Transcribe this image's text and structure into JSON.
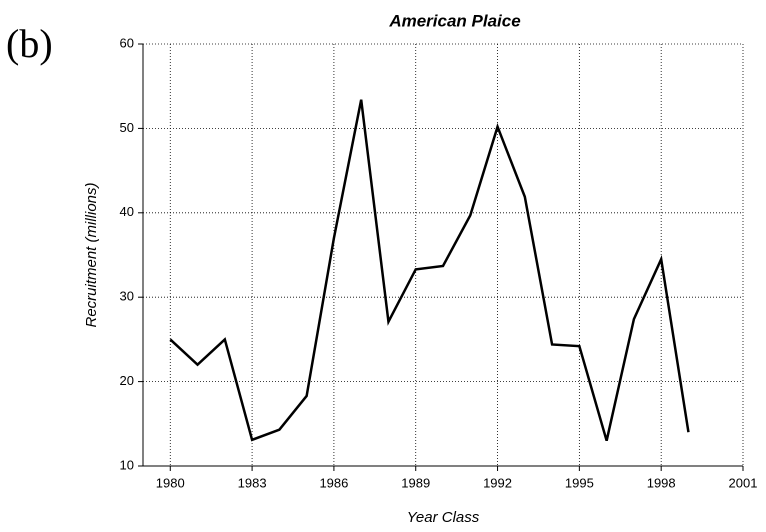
{
  "chart_data": {
    "type": "line",
    "title": "American Plaice",
    "panel_label": "(b)",
    "x_label": "Year Class",
    "y_label": "Recruitment (millions)",
    "x": [
      1980,
      1981,
      1982,
      1983,
      1984,
      1985,
      1986,
      1987,
      1988,
      1989,
      1990,
      1991,
      1992,
      1993,
      1994,
      1995,
      1996,
      1997,
      1998,
      1999
    ],
    "series": [
      {
        "color": "#000000",
        "values": [
          25.0,
          22.0,
          25.0,
          13.1,
          14.3,
          18.3,
          37.0,
          53.4,
          27.1,
          33.3,
          33.7,
          39.7,
          50.2,
          41.9,
          24.4,
          24.2,
          13.0,
          27.4,
          34.5,
          14.0
        ]
      }
    ],
    "xlim": [
      1979,
      2001
    ],
    "xticks": [
      1980,
      1983,
      1986,
      1989,
      1992,
      1995,
      1998,
      2001
    ],
    "ylim": [
      10,
      60
    ],
    "yticks": [
      10,
      20,
      30,
      40,
      50,
      60
    ],
    "grid": true
  }
}
